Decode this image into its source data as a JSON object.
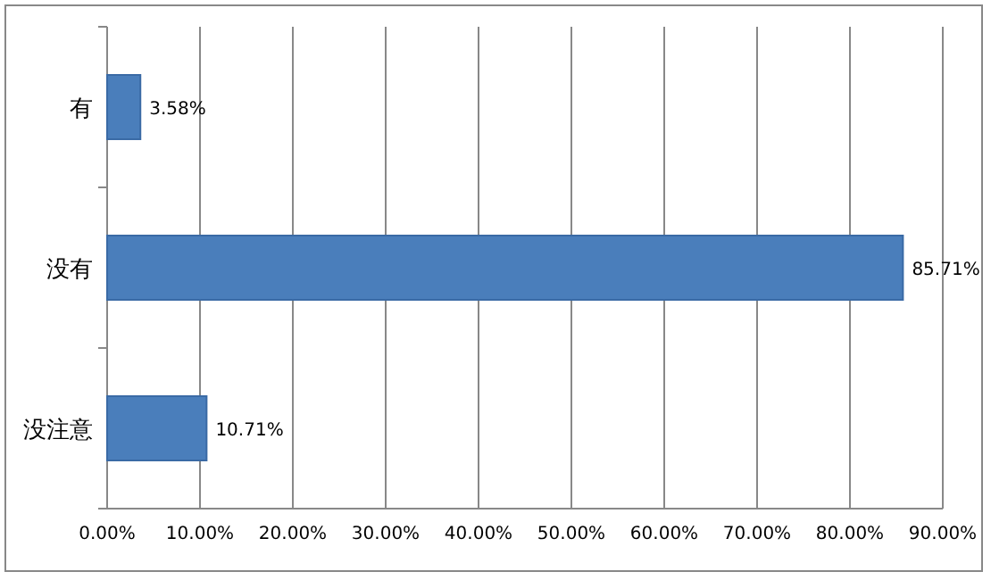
{
  "chart_data": {
    "type": "bar",
    "orientation": "horizontal",
    "categories": [
      "有",
      "没有",
      "没注意"
    ],
    "values": [
      3.58,
      85.71,
      10.71
    ],
    "value_labels": [
      "3.58%",
      "85.71%",
      "10.71%"
    ],
    "color": "#4a7ebb",
    "xlim": [
      0,
      90
    ],
    "xticks": [
      {
        "value": 0,
        "label": "0.00%"
      },
      {
        "value": 10,
        "label": "10.00%"
      },
      {
        "value": 20,
        "label": "20.00%"
      },
      {
        "value": 30,
        "label": "30.00%"
      },
      {
        "value": 40,
        "label": "40.00%"
      },
      {
        "value": 50,
        "label": "50.00%"
      },
      {
        "value": 60,
        "label": "60.00%"
      },
      {
        "value": 70,
        "label": "70.00%"
      },
      {
        "value": 80,
        "label": "80.00%"
      },
      {
        "value": 90,
        "label": "90.00%"
      }
    ],
    "grid": "x"
  }
}
